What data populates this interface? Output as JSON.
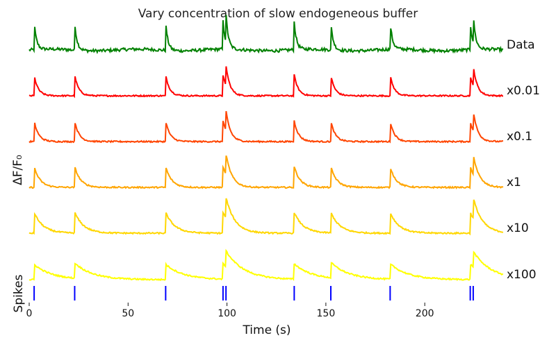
{
  "chart_data": {
    "type": "line",
    "title": "Vary concentration of slow endogeneous buffer",
    "xlabel": "Time (s)",
    "ylabel": "ΔF/F₀",
    "spikes_label": "Spikes",
    "xlim": [
      0,
      240
    ],
    "x_ticks": [
      0,
      50,
      100,
      150,
      200
    ],
    "grid": false,
    "series": [
      {
        "name": "Data",
        "color": "#008000",
        "peak": 40,
        "decay": 1.2,
        "noise": 2.2
      },
      {
        "name": "x0.01",
        "color": "#ff0000",
        "peak": 30,
        "decay": 2.0,
        "noise": 1.0
      },
      {
        "name": "x0.1",
        "color": "#ff4500",
        "peak": 30,
        "decay": 2.2,
        "noise": 1.0
      },
      {
        "name": "x1",
        "color": "#ffa500",
        "peak": 30,
        "decay": 3.0,
        "noise": 1.0
      },
      {
        "name": "x10",
        "color": "#ffd700",
        "peak": 30,
        "decay": 4.5,
        "noise": 1.0
      },
      {
        "name": "x100",
        "color": "#ffff00",
        "peak": 22,
        "decay": 9.0,
        "noise": 1.0
      }
    ],
    "spike_times": [
      2.5,
      23,
      69,
      98,
      99.5,
      134,
      152.5,
      182.5,
      223,
      224.5
    ],
    "spike_color": "#0000ff"
  }
}
